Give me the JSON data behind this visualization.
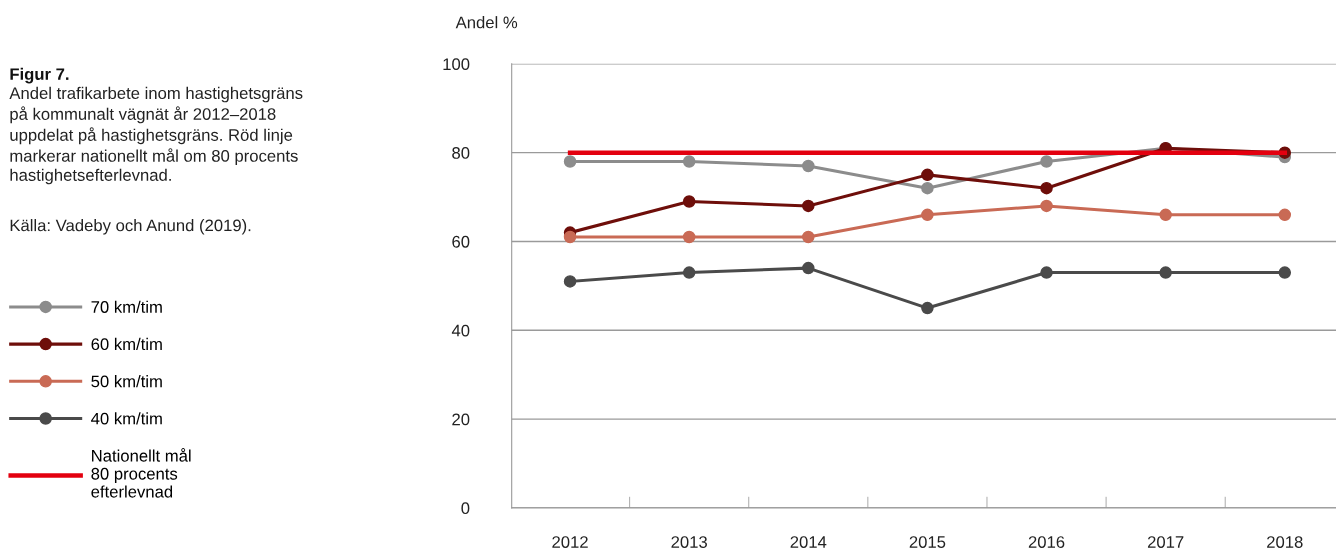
{
  "chart_data": {
    "type": "line",
    "title": "Figur 7.",
    "subtitle": "Andel trafikarbete inom hastighetsgräns\npå kommunalt vägnät år 2012–2018\nuppdelat på hastighetsgräns. Röd linje\nmarkerar nationellt mål om 80 procents\nhastighetsefterlevnad.",
    "annotations": [
      "Källa: Vadeby och Anund (2019)."
    ],
    "ylabel": "Andel %",
    "categories": [
      "2012",
      "2013",
      "2014",
      "2015",
      "2016",
      "2017",
      "2018"
    ],
    "series": [
      {
        "name": "70 km/tim",
        "color": "#8c8c8c",
        "values": [
          78,
          78,
          77,
          72,
          78,
          81,
          79
        ]
      },
      {
        "name": "60 km/tim",
        "color": "#6e0e0a",
        "values": [
          62,
          69,
          68,
          75,
          72,
          81,
          80
        ]
      },
      {
        "name": "50 km/tim",
        "color": "#c96a55",
        "values": [
          61,
          61,
          61,
          66,
          68,
          66,
          66
        ]
      },
      {
        "name": "40 km/tim",
        "color": "#4a4a4a",
        "values": [
          51,
          53,
          54,
          45,
          53,
          53,
          53
        ]
      },
      {
        "name": "Nationellt mål\n80 procents\nefterlevnad",
        "color": "#e3000f",
        "values": [
          80,
          80,
          80,
          80,
          80,
          80,
          80
        ],
        "marker": "none"
      }
    ],
    "ylim": [
      0,
      100
    ],
    "yticks": [
      0,
      20,
      40,
      60,
      80,
      100
    ],
    "grid": "y",
    "legend": "left",
    "marker": "circle",
    "line_style": "solid"
  }
}
